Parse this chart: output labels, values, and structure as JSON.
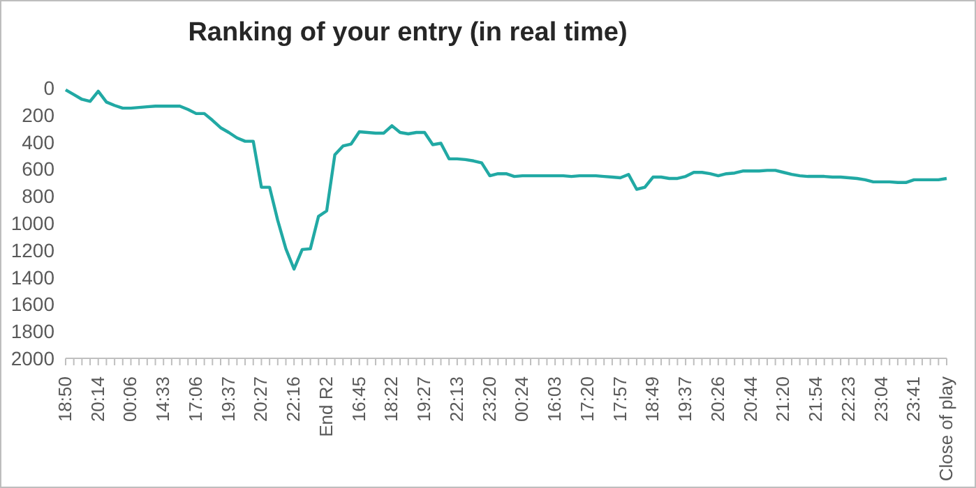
{
  "chart_data": {
    "type": "line",
    "title": "Ranking of your entry (in real time)",
    "categories": [
      "18:50",
      null,
      null,
      null,
      "20:14",
      null,
      null,
      null,
      "00:06",
      null,
      null,
      null,
      "14:33",
      null,
      null,
      null,
      "17:06",
      null,
      null,
      null,
      "19:37",
      null,
      null,
      null,
      "20:27",
      null,
      null,
      null,
      "22:16",
      null,
      null,
      null,
      "End R2",
      null,
      null,
      null,
      "16:45",
      null,
      null,
      null,
      "18:22",
      null,
      null,
      null,
      "19:27",
      null,
      null,
      null,
      "22:13",
      null,
      null,
      null,
      "23:20",
      null,
      null,
      null,
      "00:24",
      null,
      null,
      null,
      "16:03",
      null,
      null,
      null,
      "17:20",
      null,
      null,
      null,
      "17:57",
      null,
      null,
      null,
      "18:49",
      null,
      null,
      null,
      "19:37",
      null,
      null,
      null,
      "20:26",
      null,
      null,
      null,
      "20:44",
      null,
      null,
      null,
      "21:20",
      null,
      null,
      null,
      "21:54",
      null,
      null,
      null,
      "22:23",
      null,
      null,
      null,
      "23:04",
      null,
      null,
      null,
      "23:41",
      null,
      null,
      null,
      "Close of play"
    ],
    "values": [
      15,
      50,
      85,
      100,
      25,
      105,
      130,
      150,
      150,
      145,
      140,
      135,
      135,
      135,
      135,
      160,
      190,
      190,
      240,
      295,
      330,
      370,
      395,
      395,
      735,
      735,
      980,
      1190,
      1340,
      1195,
      1190,
      950,
      910,
      495,
      430,
      415,
      325,
      330,
      335,
      335,
      280,
      330,
      340,
      330,
      330,
      420,
      410,
      525,
      525,
      530,
      540,
      555,
      650,
      635,
      635,
      655,
      650,
      650,
      650,
      650,
      650,
      650,
      655,
      650,
      650,
      650,
      655,
      660,
      665,
      640,
      750,
      735,
      660,
      660,
      670,
      670,
      655,
      625,
      625,
      635,
      650,
      635,
      630,
      615,
      615,
      615,
      610,
      610,
      625,
      640,
      650,
      655,
      655,
      655,
      660,
      660,
      665,
      670,
      680,
      695,
      695,
      695,
      700,
      700,
      680,
      680,
      680,
      680,
      670
    ],
    "color": "#21a9a4",
    "marker": "none",
    "ylim": [
      2000,
      0
    ],
    "yticks": [
      0,
      200,
      400,
      600,
      800,
      1000,
      1200,
      1400,
      1600,
      1800,
      2000
    ]
  }
}
